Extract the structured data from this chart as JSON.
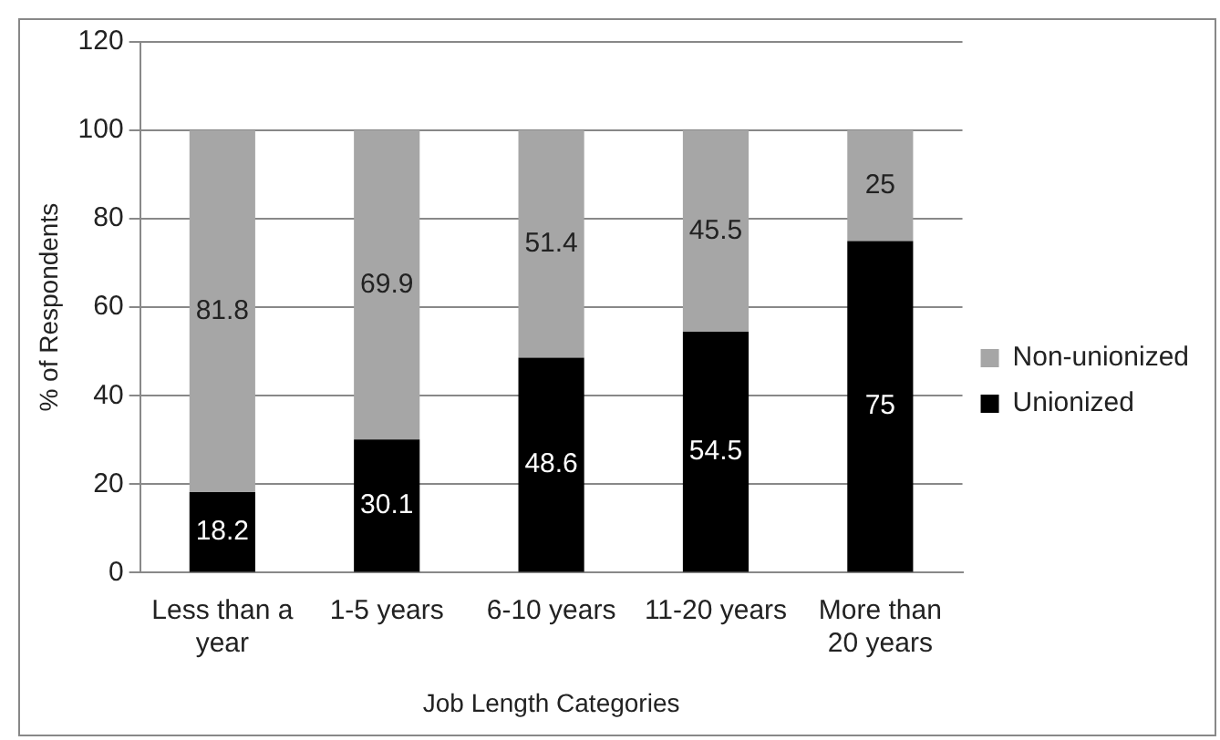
{
  "chart_data": {
    "type": "bar",
    "stacked": true,
    "xlabel": "Job Length Categories",
    "ylabel": "% of Respondents",
    "categories": [
      "Less than a year",
      "1-5 years",
      "6-10 years",
      "11-20 years",
      "More than 20 years"
    ],
    "series": [
      {
        "name": "Unionized",
        "color": "#000000",
        "values": [
          18.2,
          30.1,
          48.6,
          54.5,
          75
        ]
      },
      {
        "name": "Non-unionized",
        "color": "#a6a6a6",
        "values": [
          81.8,
          69.9,
          51.4,
          45.5,
          25
        ]
      }
    ],
    "ylim": [
      0,
      120
    ],
    "yticks": [
      0,
      20,
      40,
      60,
      80,
      100,
      120
    ],
    "grid": "y",
    "legend": "right",
    "data_labels": true
  }
}
